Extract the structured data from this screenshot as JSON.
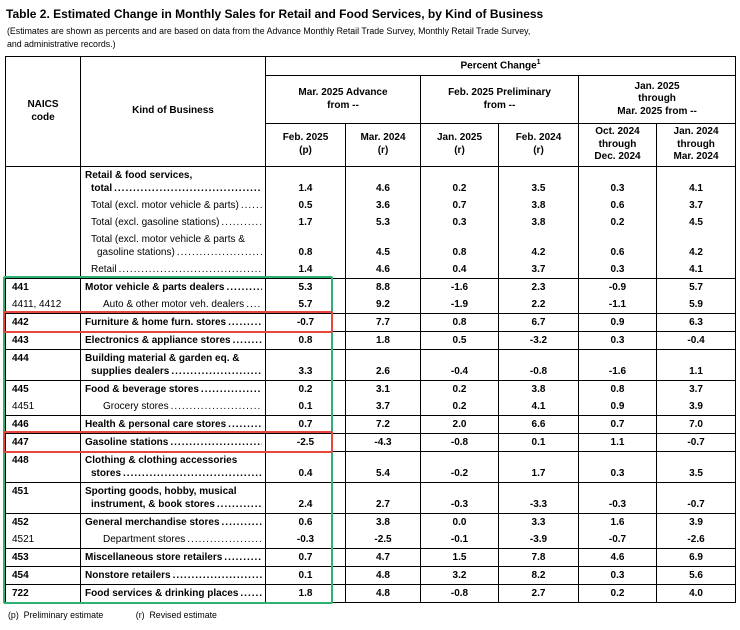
{
  "title": "Table 2.  Estimated Change in Monthly Sales for Retail and Food Services, by Kind of Business",
  "subtitle": "(Estimates are shown as percents and are based on data from the Advance Monthly Retail Trade Survey,  Monthly Retail Trade Survey,\nand administrative records.)",
  "table": {
    "header": {
      "naics": "NAICS\ncode",
      "kind": "Kind of Business",
      "percent_change": "Percent Change",
      "percent_change_sup": "1",
      "groups": [
        {
          "label": "Mar. 2025 Advance\nfrom --"
        },
        {
          "label": "Feb. 2025 Preliminary\nfrom --"
        },
        {
          "label": "Jan. 2025\nthrough\nMar. 2025 from --"
        }
      ],
      "columns": [
        "Feb. 2025\n(p)",
        "Mar. 2024\n(r)",
        "Jan. 2025\n(r)",
        "Feb. 2024\n(r)",
        "Oct. 2024\nthrough\nDec. 2024",
        "Jan. 2024\nthrough\nMar. 2024"
      ]
    },
    "rows": [
      {
        "naics": "",
        "name": "Retail & food services,\ntotal",
        "values": [
          "1.4",
          "4.6",
          "0.2",
          "3.5",
          "0.3",
          "4.1"
        ],
        "bold": true,
        "indent": 0,
        "group_start": true
      },
      {
        "naics": "",
        "name": "Total (excl. motor vehicle & parts)",
        "values": [
          "0.5",
          "3.6",
          "0.7",
          "3.8",
          "0.6",
          "3.7"
        ],
        "bold": false,
        "indent": 1,
        "group_start": false
      },
      {
        "naics": "",
        "name": "Total (excl. gasoline stations)",
        "values": [
          "1.7",
          "5.3",
          "0.3",
          "3.8",
          "0.2",
          "4.5"
        ],
        "bold": false,
        "indent": 1,
        "group_start": false
      },
      {
        "naics": "",
        "name": "Total (excl. motor vehicle & parts &\ngasoline stations)",
        "values": [
          "0.8",
          "4.5",
          "0.8",
          "4.2",
          "0.6",
          "4.2"
        ],
        "bold": false,
        "indent": 1,
        "group_start": false
      },
      {
        "naics": "",
        "name": "Retail",
        "values": [
          "1.4",
          "4.6",
          "0.4",
          "3.7",
          "0.3",
          "4.1"
        ],
        "bold": false,
        "indent": 1,
        "group_start": false
      },
      {
        "naics": "441",
        "name": "Motor vehicle & parts dealers",
        "values": [
          "5.3",
          "8.8",
          "-1.6",
          "2.3",
          "-0.9",
          "5.7"
        ],
        "bold": true,
        "indent": 0,
        "group_start": true
      },
      {
        "naics": "4411, 4412",
        "name": "Auto & other motor veh. dealers",
        "values": [
          "5.7",
          "9.2",
          "-1.9",
          "2.2",
          "-1.1",
          "5.9"
        ],
        "bold": false,
        "indent": 2,
        "group_start": false
      },
      {
        "naics": "442",
        "name": "Furniture & home furn. stores",
        "values": [
          "-0.7",
          "7.7",
          "0.8",
          "6.7",
          "0.9",
          "6.3"
        ],
        "bold": true,
        "indent": 0,
        "group_start": true
      },
      {
        "naics": "443",
        "name": "Electronics & appliance stores",
        "values": [
          "0.8",
          "1.8",
          "0.5",
          "-3.2",
          "0.3",
          "-0.4"
        ],
        "bold": true,
        "indent": 0,
        "group_start": true
      },
      {
        "naics": "444",
        "name": "Building material & garden eq. &\nsupplies dealers",
        "values": [
          "3.3",
          "2.6",
          "-0.4",
          "-0.8",
          "-1.6",
          "1.1"
        ],
        "bold": true,
        "indent": 0,
        "group_start": true
      },
      {
        "naics": "445",
        "name": "Food & beverage stores",
        "values": [
          "0.2",
          "3.1",
          "0.2",
          "3.8",
          "0.8",
          "3.7"
        ],
        "bold": true,
        "indent": 0,
        "group_start": true
      },
      {
        "naics": "4451",
        "name": "Grocery stores",
        "values": [
          "0.1",
          "3.7",
          "0.2",
          "4.1",
          "0.9",
          "3.9"
        ],
        "bold": false,
        "indent": 2,
        "group_start": false
      },
      {
        "naics": "446",
        "name": "Health & personal care stores",
        "values": [
          "0.7",
          "7.2",
          "2.0",
          "6.6",
          "0.7",
          "7.0"
        ],
        "bold": true,
        "indent": 0,
        "group_start": true
      },
      {
        "naics": "447",
        "name": "Gasoline stations",
        "values": [
          "-2.5",
          "-4.3",
          "-0.8",
          "0.1",
          "1.1",
          "-0.7"
        ],
        "bold": true,
        "indent": 0,
        "group_start": true
      },
      {
        "naics": "448",
        "name": "Clothing & clothing accessories\nstores",
        "values": [
          "0.4",
          "5.4",
          "-0.2",
          "1.7",
          "0.3",
          "3.5"
        ],
        "bold": true,
        "indent": 0,
        "group_start": true
      },
      {
        "naics": "451",
        "name": "Sporting goods, hobby, musical\ninstrument, & book stores",
        "values": [
          "2.4",
          "2.7",
          "-0.3",
          "-3.3",
          "-0.3",
          "-0.7"
        ],
        "bold": true,
        "indent": 0,
        "group_start": true
      },
      {
        "naics": "452",
        "name": "General merchandise stores",
        "values": [
          "0.6",
          "3.8",
          "0.0",
          "3.3",
          "1.6",
          "3.9"
        ],
        "bold": true,
        "indent": 0,
        "group_start": true
      },
      {
        "naics": "4521",
        "name": "Department stores",
        "values": [
          "-0.3",
          "-2.5",
          "-0.1",
          "-3.9",
          "-0.7",
          "-2.6"
        ],
        "bold": false,
        "indent": 2,
        "group_start": false
      },
      {
        "naics": "453",
        "name": "Miscellaneous store retailers",
        "values": [
          "0.7",
          "4.7",
          "1.5",
          "7.8",
          "4.6",
          "6.9"
        ],
        "bold": true,
        "indent": 0,
        "group_start": true
      },
      {
        "naics": "454",
        "name": "Nonstore retailers",
        "values": [
          "0.1",
          "4.8",
          "3.2",
          "8.2",
          "0.3",
          "5.6"
        ],
        "bold": true,
        "indent": 0,
        "group_start": true
      },
      {
        "naics": "722",
        "name": "Food services & drinking places",
        "values": [
          "1.8",
          "4.8",
          "-0.8",
          "2.7",
          "0.2",
          "4.0"
        ],
        "bold": true,
        "indent": 0,
        "group_start": true
      }
    ]
  },
  "footnotes": {
    "p": "(p)  Preliminary estimate",
    "r": "(r)  Revised estimate"
  },
  "annotations": {
    "green_box": {
      "color": "#2db273",
      "from_naics": "441",
      "to_naics": "722"
    },
    "red_color": "#e8463c",
    "red_boxes": [
      {
        "naics": "442"
      },
      {
        "naics": "447"
      }
    ]
  }
}
